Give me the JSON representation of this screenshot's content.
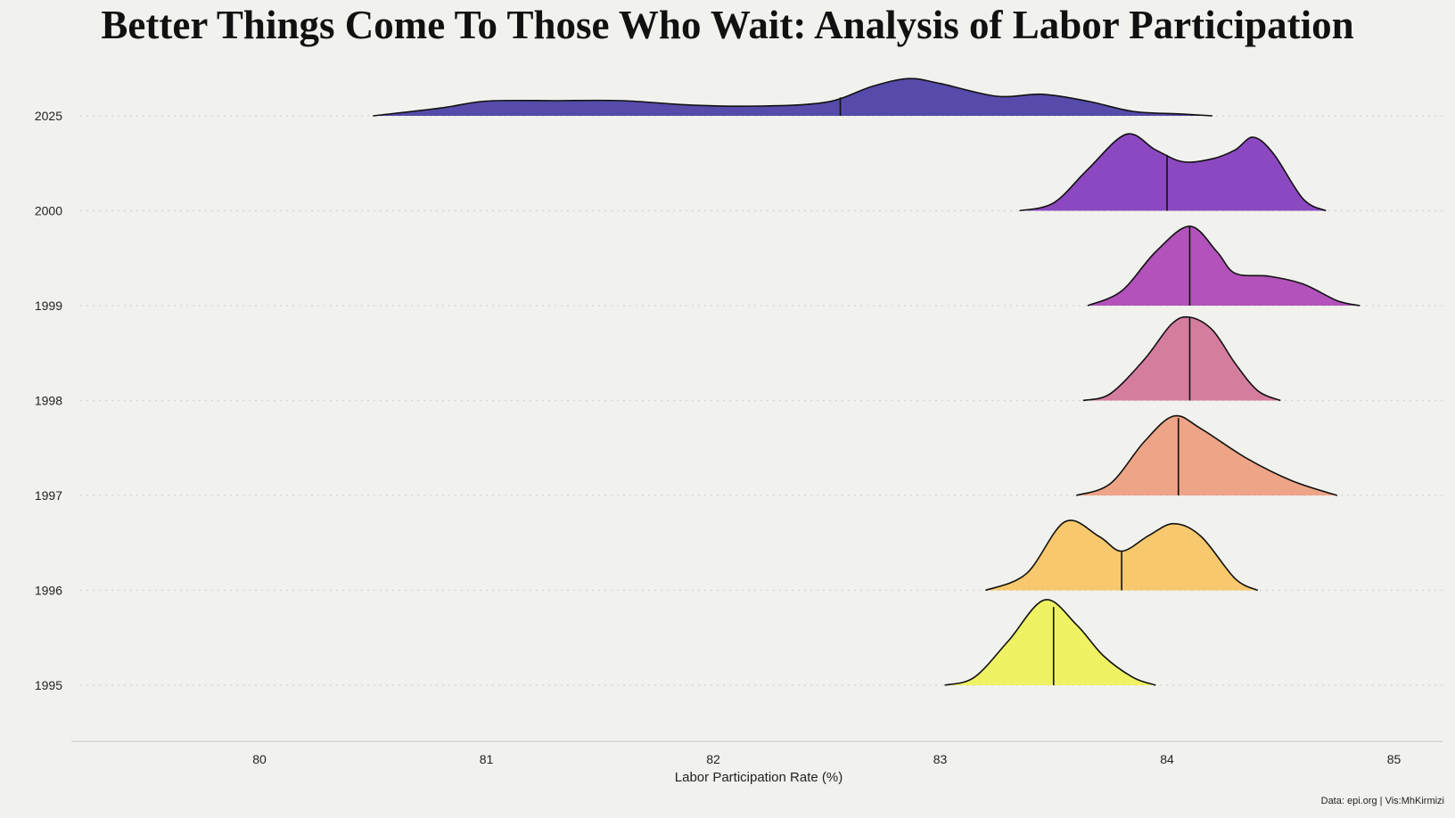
{
  "chart_data": {
    "type": "ridgeline",
    "title": "Better Things Come To Those Who Wait: Analysis of Labor Participation",
    "xlabel": "Labor Participation Rate (%)",
    "ylabel": "",
    "xlim": [
      79.2,
      85.2
    ],
    "x_ticks": [
      "80",
      "81",
      "82",
      "83",
      "84",
      "85"
    ],
    "caption": "Data: epi.org | Vis:MhKirmizi",
    "grid": "dotted horizontal baselines",
    "colors": {
      "background": "#f1f2ee",
      "grid": "#d4d4d4",
      "axis": "#cfcfcf"
    },
    "series": [
      {
        "name": "2025",
        "color": "#3b2e9e",
        "median": 82.56,
        "curve": [
          [
            80.5,
            0.0
          ],
          [
            80.8,
            0.08
          ],
          [
            81.0,
            0.15
          ],
          [
            81.3,
            0.155
          ],
          [
            81.6,
            0.155
          ],
          [
            81.9,
            0.11
          ],
          [
            82.2,
            0.1
          ],
          [
            82.5,
            0.14
          ],
          [
            82.7,
            0.3
          ],
          [
            82.86,
            0.38
          ],
          [
            83.0,
            0.33
          ],
          [
            83.25,
            0.2
          ],
          [
            83.45,
            0.22
          ],
          [
            83.65,
            0.15
          ],
          [
            83.85,
            0.045
          ],
          [
            84.05,
            0.02
          ],
          [
            84.2,
            0.0
          ]
        ]
      },
      {
        "name": "2000",
        "color": "#7a2ab8",
        "median": 84.0,
        "curve": [
          [
            83.35,
            0.0
          ],
          [
            83.5,
            0.08
          ],
          [
            83.65,
            0.42
          ],
          [
            83.82,
            0.78
          ],
          [
            83.95,
            0.62
          ],
          [
            84.07,
            0.5
          ],
          [
            84.2,
            0.53
          ],
          [
            84.3,
            0.62
          ],
          [
            84.38,
            0.75
          ],
          [
            84.47,
            0.58
          ],
          [
            84.6,
            0.12
          ],
          [
            84.7,
            0.0
          ]
        ]
      },
      {
        "name": "1999",
        "color": "#a836b0",
        "median": 84.1,
        "curve": [
          [
            83.65,
            0.0
          ],
          [
            83.8,
            0.15
          ],
          [
            83.95,
            0.55
          ],
          [
            84.1,
            0.81
          ],
          [
            84.22,
            0.55
          ],
          [
            84.3,
            0.33
          ],
          [
            84.45,
            0.3
          ],
          [
            84.6,
            0.22
          ],
          [
            84.75,
            0.05
          ],
          [
            84.85,
            0.0
          ]
        ]
      },
      {
        "name": "1998",
        "color": "#d06890",
        "median": 84.1,
        "curve": [
          [
            83.63,
            0.0
          ],
          [
            83.75,
            0.07
          ],
          [
            83.9,
            0.42
          ],
          [
            84.02,
            0.78
          ],
          [
            84.1,
            0.85
          ],
          [
            84.2,
            0.72
          ],
          [
            84.3,
            0.38
          ],
          [
            84.4,
            0.1
          ],
          [
            84.5,
            0.0
          ]
        ]
      },
      {
        "name": "1997",
        "color": "#ec9674",
        "median": 84.05,
        "curve": [
          [
            83.6,
            0.0
          ],
          [
            83.75,
            0.12
          ],
          [
            83.9,
            0.55
          ],
          [
            84.03,
            0.81
          ],
          [
            84.15,
            0.68
          ],
          [
            84.35,
            0.38
          ],
          [
            84.55,
            0.15
          ],
          [
            84.75,
            0.0
          ]
        ]
      },
      {
        "name": "1996",
        "color": "#f8c156",
        "median": 83.8,
        "curve": [
          [
            83.2,
            0.0
          ],
          [
            83.38,
            0.17
          ],
          [
            83.55,
            0.7
          ],
          [
            83.7,
            0.55
          ],
          [
            83.8,
            0.4
          ],
          [
            83.92,
            0.56
          ],
          [
            84.03,
            0.68
          ],
          [
            84.15,
            0.55
          ],
          [
            84.3,
            0.12
          ],
          [
            84.4,
            0.0
          ]
        ]
      },
      {
        "name": "1995",
        "color": "#eef24a",
        "median": 83.5,
        "curve": [
          [
            83.02,
            0.0
          ],
          [
            83.15,
            0.08
          ],
          [
            83.3,
            0.45
          ],
          [
            83.46,
            0.87
          ],
          [
            83.6,
            0.62
          ],
          [
            83.72,
            0.3
          ],
          [
            83.85,
            0.08
          ],
          [
            83.95,
            0.0
          ]
        ]
      }
    ],
    "labels": [
      "2025",
      "2000",
      "1999",
      "1998",
      "1997",
      "1996",
      "1995"
    ]
  }
}
